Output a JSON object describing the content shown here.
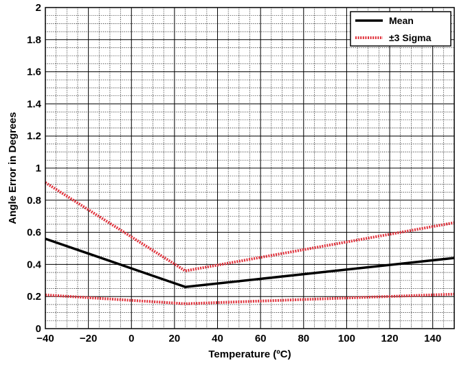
{
  "chart_data": {
    "type": "line",
    "title": "",
    "xlabel": "Temperature (ºC)",
    "ylabel": "Angle Error in Degrees",
    "xlim": [
      -40,
      150
    ],
    "ylim": [
      0,
      2
    ],
    "x_ticks": [
      -40,
      -20,
      0,
      20,
      40,
      60,
      80,
      100,
      120,
      140
    ],
    "x_tick_labels": [
      "−40",
      "−20",
      "0",
      "20",
      "40",
      "60",
      "80",
      "100",
      "120",
      "140"
    ],
    "y_ticks": [
      0,
      0.2,
      0.4,
      0.6,
      0.8,
      1,
      1.2,
      1.4,
      1.6,
      1.8,
      2
    ],
    "y_tick_labels": [
      "0",
      "0.2",
      "0.4",
      "0.6",
      "0.8",
      "1",
      "1.2",
      "1.4",
      "1.6",
      "1.8",
      "2"
    ],
    "grid": true,
    "minor_grid": true,
    "legend_position": "top-right",
    "series": [
      {
        "name": "Mean",
        "style": "solid",
        "color": "#000000",
        "x": [
          -40,
          25,
          150
        ],
        "y": [
          0.56,
          0.26,
          0.44
        ]
      },
      {
        "name": "±3 Sigma",
        "style": "dotted",
        "color": "#e0303a",
        "x": [
          -40,
          25,
          150
        ],
        "y": [
          0.91,
          0.36,
          0.66
        ]
      },
      {
        "name": "",
        "legend": false,
        "style": "dotted",
        "color": "#e0303a",
        "x": [
          -40,
          25,
          150
        ],
        "y": [
          0.21,
          0.155,
          0.215
        ]
      }
    ]
  }
}
